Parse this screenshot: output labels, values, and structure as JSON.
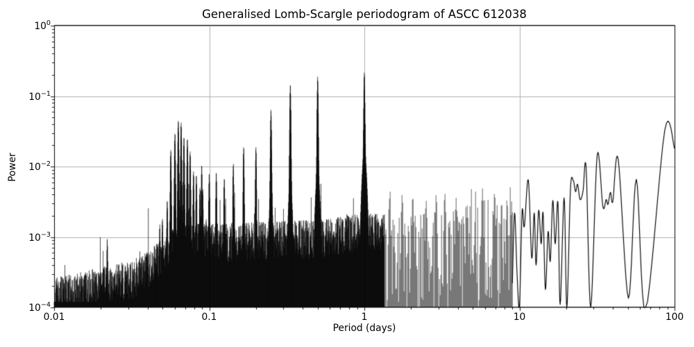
{
  "chart_data": {
    "type": "line",
    "title": "Generalised Lomb-Scargle periodogram of ASCC 612038",
    "xlabel": "Period (days)",
    "ylabel": "Power",
    "xscale": "log",
    "yscale": "log",
    "xlim": [
      0.01,
      100
    ],
    "ylim": [
      0.0001,
      1
    ],
    "grid": true,
    "legend": "none",
    "colors": {
      "line": "#000000",
      "grid": "#b0b0b0",
      "text": "#000000",
      "background": "#ffffff"
    },
    "x_ticks": [
      {
        "v": 0.01,
        "label": "0.01"
      },
      {
        "v": 0.1,
        "label": "0.1"
      },
      {
        "v": 1,
        "label": "1"
      },
      {
        "v": 10,
        "label": "10"
      },
      {
        "v": 100,
        "label": "100"
      }
    ],
    "y_ticks": [
      {
        "v": 1,
        "base": "10",
        "exp": "0"
      },
      {
        "v": 0.1,
        "base": "10",
        "exp": "−1"
      },
      {
        "v": 0.01,
        "base": "10",
        "exp": "−2"
      },
      {
        "v": 0.001,
        "base": "10",
        "exp": "−3"
      },
      {
        "v": 0.0001,
        "base": "10",
        "exp": "−4"
      }
    ],
    "alias_peaks": [
      [
        1.0,
        0.2
      ],
      [
        0.5,
        0.18
      ],
      [
        0.3333,
        0.14
      ],
      [
        0.25,
        0.06
      ],
      [
        0.2,
        0.019
      ],
      [
        0.1667,
        0.019
      ],
      [
        0.143,
        0.011
      ],
      [
        0.125,
        0.0068
      ],
      [
        0.111,
        0.0083
      ],
      [
        0.1,
        0.008
      ],
      [
        0.0894,
        0.0105
      ]
    ],
    "cluster_peaks": [
      [
        0.0499,
        0.0018
      ],
      [
        0.0536,
        0.0032
      ],
      [
        0.0565,
        0.017
      ],
      [
        0.0601,
        0.029
      ],
      [
        0.0632,
        0.044
      ],
      [
        0.0659,
        0.041
      ],
      [
        0.0687,
        0.025
      ],
      [
        0.0723,
        0.024
      ],
      [
        0.0753,
        0.016
      ],
      [
        0.0792,
        0.0084
      ],
      [
        0.0826,
        0.0075
      ],
      [
        0.0871,
        0.005
      ],
      [
        0.0908,
        0.0048
      ],
      [
        0.0955,
        0.0018
      ]
    ],
    "pedestals": [
      [
        1.0,
        0.016,
        0.012
      ],
      [
        0.5,
        0.009,
        0.011
      ],
      [
        0.3333,
        0.006,
        0.01
      ],
      [
        0.25,
        0.0045,
        0.009
      ],
      [
        0.066,
        0.0012,
        0.04
      ]
    ],
    "extra_spikes": [
      [
        0.022,
        0.00095
      ],
      [
        0.048,
        0.0015
      ],
      [
        1.45,
        0.0035
      ],
      [
        1.75,
        0.004
      ],
      [
        2.05,
        0.0038
      ],
      [
        2.5,
        0.0033
      ],
      [
        2.9,
        0.004
      ],
      [
        3.3,
        0.0042
      ],
      [
        3.9,
        0.0036
      ],
      [
        4.6,
        0.0028
      ],
      [
        5.77,
        0.0049
      ],
      [
        6.9,
        0.0043
      ],
      [
        8.3,
        0.0034
      ],
      [
        8.9,
        0.0032
      ]
    ],
    "noise_envelope_logP_logPower": [
      [
        -2.0,
        -3.58
      ],
      [
        -1.85,
        -3.51
      ],
      [
        -1.7,
        -3.43
      ],
      [
        -1.46,
        -3.31
      ],
      [
        -1.3,
        -3.02
      ],
      [
        -1.19,
        -2.8
      ],
      [
        -1.0,
        -2.82
      ],
      [
        -0.8,
        -2.8
      ],
      [
        -0.5,
        -2.77
      ],
      [
        -0.3,
        -2.76
      ],
      [
        0.0,
        -2.66
      ],
      [
        0.3,
        -2.7
      ],
      [
        0.6,
        -2.6
      ],
      [
        0.78,
        -2.46
      ],
      [
        0.97,
        -2.55
      ]
    ],
    "long_period_curve": [
      [
        9.0,
        0.00022
      ],
      [
        9.3,
        0.0022
      ],
      [
        9.65,
        0.0003
      ],
      [
        10.0,
        0.000105
      ],
      [
        10.4,
        0.0023
      ],
      [
        10.75,
        0.0014
      ],
      [
        11.4,
        0.0065
      ],
      [
        12.0,
        0.0005
      ],
      [
        12.45,
        0.0022
      ],
      [
        12.8,
        0.0004
      ],
      [
        13.3,
        0.0024
      ],
      [
        13.8,
        0.0008
      ],
      [
        14.2,
        0.0022
      ],
      [
        14.7,
        0.00018
      ],
      [
        15.3,
        0.0012
      ],
      [
        15.8,
        0.00045
      ],
      [
        16.4,
        0.0033
      ],
      [
        17.0,
        0.0008
      ],
      [
        17.7,
        0.0031
      ],
      [
        18.3,
        0.00011
      ],
      [
        19.4,
        0.0036
      ],
      [
        20.2,
        0.0001
      ],
      [
        21.3,
        0.0046
      ],
      [
        22.2,
        0.0064
      ],
      [
        23.0,
        0.0044
      ],
      [
        23.7,
        0.0056
      ],
      [
        24.6,
        0.0034
      ],
      [
        25.7,
        0.0045
      ],
      [
        26.9,
        0.0096
      ],
      [
        28.8,
        0.0001
      ],
      [
        31.7,
        0.0145
      ],
      [
        34.5,
        0.0027
      ],
      [
        36.2,
        0.0034
      ],
      [
        37.2,
        0.0029
      ],
      [
        38.6,
        0.0043
      ],
      [
        40.0,
        0.0032
      ],
      [
        43.3,
        0.0128
      ],
      [
        50.4,
        0.000135
      ],
      [
        56.7,
        0.0066
      ],
      [
        65.0,
        9e-05
      ],
      [
        86.5,
        0.033
      ],
      [
        100.0,
        0.018
      ]
    ],
    "zones": {
      "dense_max_period": 1.35,
      "sparse_max_period": 9.0
    }
  }
}
